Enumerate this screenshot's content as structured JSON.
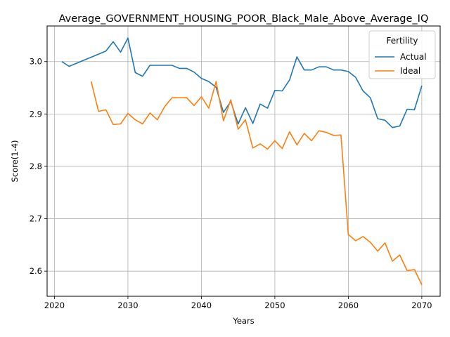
{
  "chart_data": {
    "type": "line",
    "title": "Average_GOVERNMENT_HOUSING_POOR_Black_Male_Above_Average_IQ",
    "xlabel": "Years",
    "ylabel": "Score(1-4)",
    "xlim": [
      2019,
      2072.5
    ],
    "ylim": [
      2.552,
      3.068
    ],
    "xticks": [
      2020,
      2030,
      2040,
      2050,
      2060,
      2070
    ],
    "yticks": [
      2.6,
      2.7,
      2.8,
      2.9,
      3.0
    ],
    "ytick_labels": [
      "2.6",
      "2.7",
      "2.8",
      "2.9",
      "3.0"
    ],
    "grid": true,
    "legend": {
      "title": "Fertility",
      "placement": "upper right"
    },
    "series": [
      {
        "name": "Actual",
        "color": "#1f77b4",
        "x": [
          2021,
          2022,
          2027,
          2028,
          2029,
          2030,
          2031,
          2032,
          2033,
          2034,
          2035,
          2036,
          2037,
          2038,
          2039,
          2040,
          2041,
          2042,
          2043,
          2044,
          2045,
          2046,
          2047,
          2048,
          2049,
          2050,
          2051,
          2052,
          2053,
          2054,
          2055,
          2056,
          2057,
          2058,
          2059,
          2060,
          2061,
          2062,
          2063,
          2064,
          2065,
          2066,
          2067,
          2068,
          2069,
          2070
        ],
        "y": [
          3.0,
          2.991,
          3.02,
          3.038,
          3.018,
          3.045,
          2.979,
          2.972,
          2.993,
          2.993,
          2.993,
          2.993,
          2.987,
          2.987,
          2.98,
          2.968,
          2.962,
          2.951,
          2.903,
          2.924,
          2.881,
          2.912,
          2.882,
          2.919,
          2.911,
          2.945,
          2.944,
          2.965,
          3.009,
          2.984,
          2.984,
          2.99,
          2.99,
          2.984,
          2.984,
          2.981,
          2.97,
          2.944,
          2.931,
          2.891,
          2.888,
          2.874,
          2.877,
          2.909,
          2.908,
          2.954
        ]
      },
      {
        "name": "Ideal",
        "color": "#ff7f0e",
        "x": [
          2025,
          2026,
          2027,
          2028,
          2029,
          2030,
          2031,
          2032,
          2033,
          2034,
          2035,
          2036,
          2037,
          2038,
          2039,
          2040,
          2041,
          2042,
          2043,
          2044,
          2045,
          2046,
          2047,
          2048,
          2049,
          2050,
          2051,
          2052,
          2053,
          2054,
          2055,
          2056,
          2057,
          2058,
          2059,
          2060,
          2061,
          2062,
          2063,
          2064,
          2065,
          2066,
          2067,
          2068,
          2069,
          2070
        ],
        "y": [
          2.962,
          2.905,
          2.908,
          2.88,
          2.881,
          2.901,
          2.889,
          2.881,
          2.902,
          2.889,
          2.914,
          2.931,
          2.931,
          2.931,
          2.916,
          2.933,
          2.911,
          2.962,
          2.887,
          2.927,
          2.871,
          2.889,
          2.835,
          2.843,
          2.833,
          2.849,
          2.834,
          2.866,
          2.841,
          2.863,
          2.849,
          2.868,
          2.865,
          2.859,
          2.86,
          2.67,
          2.658,
          2.666,
          2.655,
          2.638,
          2.654,
          2.619,
          2.631,
          2.601,
          2.603,
          2.574
        ]
      }
    ]
  }
}
